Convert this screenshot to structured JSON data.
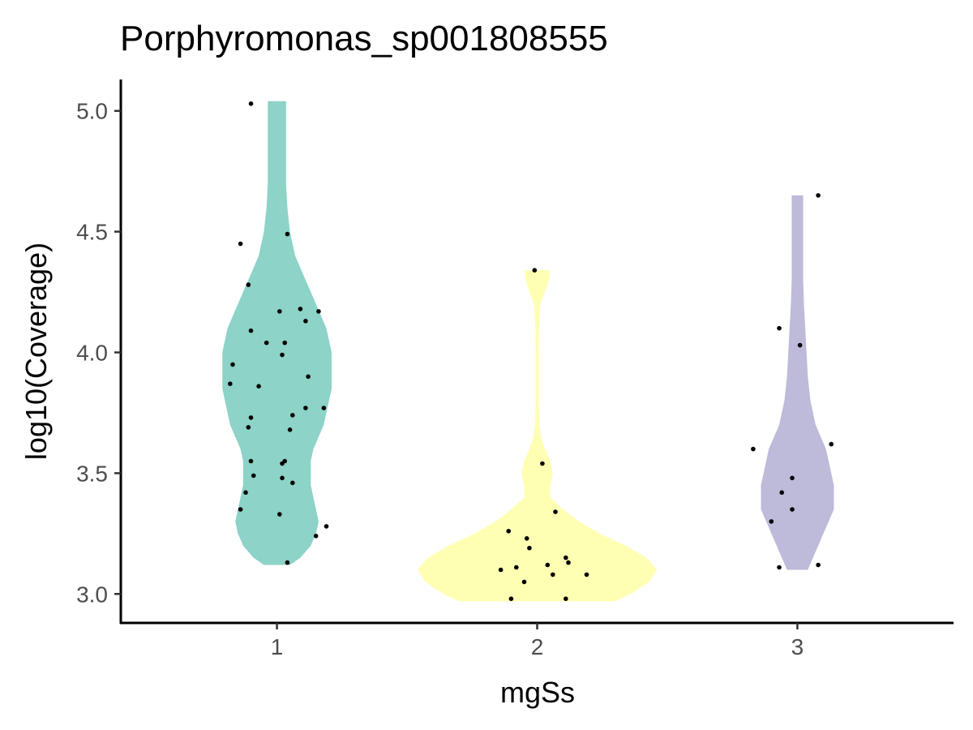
{
  "chart_data": {
    "type": "violin",
    "title": "Porphyromonas_sp001808555",
    "xlabel": "mgSs",
    "ylabel": "log10(Coverage)",
    "categories": [
      "1",
      "2",
      "3"
    ],
    "yticks": [
      "3.0",
      "3.5",
      "4.0",
      "4.5",
      "5.0"
    ],
    "ylim": [
      2.88,
      5.13
    ],
    "grid": false,
    "legend": "none",
    "violins": [
      {
        "category": "1",
        "color": "#8DD3C7",
        "profile": [
          [
            3.12,
            0.05
          ],
          [
            3.15,
            0.09
          ],
          [
            3.2,
            0.13
          ],
          [
            3.25,
            0.15
          ],
          [
            3.3,
            0.16
          ],
          [
            3.35,
            0.15
          ],
          [
            3.4,
            0.14
          ],
          [
            3.45,
            0.13
          ],
          [
            3.5,
            0.13
          ],
          [
            3.55,
            0.13
          ],
          [
            3.6,
            0.14
          ],
          [
            3.65,
            0.16
          ],
          [
            3.7,
            0.18
          ],
          [
            3.75,
            0.19
          ],
          [
            3.8,
            0.2
          ],
          [
            3.85,
            0.21
          ],
          [
            3.9,
            0.21
          ],
          [
            3.95,
            0.21
          ],
          [
            4.0,
            0.21
          ],
          [
            4.05,
            0.2
          ],
          [
            4.1,
            0.19
          ],
          [
            4.15,
            0.17
          ],
          [
            4.2,
            0.15
          ],
          [
            4.25,
            0.13
          ],
          [
            4.3,
            0.11
          ],
          [
            4.35,
            0.09
          ],
          [
            4.4,
            0.07
          ],
          [
            4.45,
            0.06
          ],
          [
            4.5,
            0.05
          ],
          [
            4.6,
            0.04
          ],
          [
            4.7,
            0.035
          ],
          [
            4.8,
            0.035
          ],
          [
            4.9,
            0.035
          ],
          [
            5.04,
            0.035
          ]
        ]
      },
      {
        "category": "2",
        "color": "#FFFFB3",
        "profile": [
          [
            2.97,
            0.3
          ],
          [
            3.0,
            0.36
          ],
          [
            3.05,
            0.43
          ],
          [
            3.1,
            0.46
          ],
          [
            3.15,
            0.42
          ],
          [
            3.2,
            0.34
          ],
          [
            3.25,
            0.24
          ],
          [
            3.3,
            0.16
          ],
          [
            3.35,
            0.1
          ],
          [
            3.4,
            0.05
          ],
          [
            3.45,
            0.05
          ],
          [
            3.5,
            0.06
          ],
          [
            3.55,
            0.05
          ],
          [
            3.6,
            0.03
          ],
          [
            3.65,
            0.015
          ],
          [
            3.7,
            0.008
          ],
          [
            3.8,
            0.006
          ],
          [
            3.9,
            0.006
          ],
          [
            4.0,
            0.006
          ],
          [
            4.1,
            0.007
          ],
          [
            4.2,
            0.012
          ],
          [
            4.25,
            0.03
          ],
          [
            4.3,
            0.045
          ],
          [
            4.34,
            0.05
          ]
        ]
      },
      {
        "category": "3",
        "color": "#BEBADA",
        "profile": [
          [
            3.1,
            0.04
          ],
          [
            3.15,
            0.06
          ],
          [
            3.2,
            0.08
          ],
          [
            3.25,
            0.1
          ],
          [
            3.3,
            0.12
          ],
          [
            3.35,
            0.14
          ],
          [
            3.4,
            0.14
          ],
          [
            3.45,
            0.14
          ],
          [
            3.5,
            0.13
          ],
          [
            3.55,
            0.12
          ],
          [
            3.6,
            0.11
          ],
          [
            3.65,
            0.09
          ],
          [
            3.7,
            0.07
          ],
          [
            3.75,
            0.06
          ],
          [
            3.8,
            0.05
          ],
          [
            3.9,
            0.04
          ],
          [
            4.0,
            0.035
          ],
          [
            4.1,
            0.03
          ],
          [
            4.2,
            0.025
          ],
          [
            4.3,
            0.022
          ],
          [
            4.4,
            0.022
          ],
          [
            4.5,
            0.022
          ],
          [
            4.65,
            0.022
          ]
        ]
      }
    ],
    "points": [
      {
        "x": 0.9,
        "y": 5.03
      },
      {
        "x": 1.04,
        "y": 4.49
      },
      {
        "x": 0.86,
        "y": 4.45
      },
      {
        "x": 0.89,
        "y": 4.28
      },
      {
        "x": 1.09,
        "y": 4.18
      },
      {
        "x": 1.16,
        "y": 4.17
      },
      {
        "x": 1.01,
        "y": 4.17
      },
      {
        "x": 1.11,
        "y": 4.13
      },
      {
        "x": 0.9,
        "y": 4.09
      },
      {
        "x": 0.96,
        "y": 4.04
      },
      {
        "x": 1.03,
        "y": 4.04
      },
      {
        "x": 1.02,
        "y": 3.99
      },
      {
        "x": 0.83,
        "y": 3.95
      },
      {
        "x": 1.12,
        "y": 3.9
      },
      {
        "x": 0.82,
        "y": 3.87
      },
      {
        "x": 0.93,
        "y": 3.86
      },
      {
        "x": 1.18,
        "y": 3.77
      },
      {
        "x": 1.11,
        "y": 3.77
      },
      {
        "x": 1.06,
        "y": 3.74
      },
      {
        "x": 0.9,
        "y": 3.73
      },
      {
        "x": 0.89,
        "y": 3.69
      },
      {
        "x": 1.05,
        "y": 3.68
      },
      {
        "x": 0.9,
        "y": 3.55
      },
      {
        "x": 1.03,
        "y": 3.55
      },
      {
        "x": 1.02,
        "y": 3.54
      },
      {
        "x": 0.91,
        "y": 3.49
      },
      {
        "x": 1.02,
        "y": 3.48
      },
      {
        "x": 1.06,
        "y": 3.46
      },
      {
        "x": 0.88,
        "y": 3.42
      },
      {
        "x": 0.86,
        "y": 3.35
      },
      {
        "x": 1.01,
        "y": 3.33
      },
      {
        "x": 1.19,
        "y": 3.28
      },
      {
        "x": 1.15,
        "y": 3.24
      },
      {
        "x": 1.04,
        "y": 3.13
      },
      {
        "x": 1.99,
        "y": 4.34
      },
      {
        "x": 2.02,
        "y": 3.54
      },
      {
        "x": 2.07,
        "y": 3.34
      },
      {
        "x": 1.89,
        "y": 3.26
      },
      {
        "x": 1.96,
        "y": 3.23
      },
      {
        "x": 1.97,
        "y": 3.19
      },
      {
        "x": 2.11,
        "y": 3.15
      },
      {
        "x": 2.04,
        "y": 3.12
      },
      {
        "x": 2.12,
        "y": 3.13
      },
      {
        "x": 1.92,
        "y": 3.11
      },
      {
        "x": 1.86,
        "y": 3.1
      },
      {
        "x": 2.06,
        "y": 3.08
      },
      {
        "x": 2.19,
        "y": 3.08
      },
      {
        "x": 1.95,
        "y": 3.05
      },
      {
        "x": 1.9,
        "y": 2.98
      },
      {
        "x": 2.11,
        "y": 2.98
      },
      {
        "x": 3.08,
        "y": 4.65
      },
      {
        "x": 2.93,
        "y": 4.1
      },
      {
        "x": 3.01,
        "y": 4.03
      },
      {
        "x": 3.13,
        "y": 3.62
      },
      {
        "x": 2.83,
        "y": 3.6
      },
      {
        "x": 2.98,
        "y": 3.48
      },
      {
        "x": 2.94,
        "y": 3.42
      },
      {
        "x": 2.98,
        "y": 3.35
      },
      {
        "x": 2.9,
        "y": 3.3
      },
      {
        "x": 3.08,
        "y": 3.12
      },
      {
        "x": 2.93,
        "y": 3.11
      }
    ]
  }
}
